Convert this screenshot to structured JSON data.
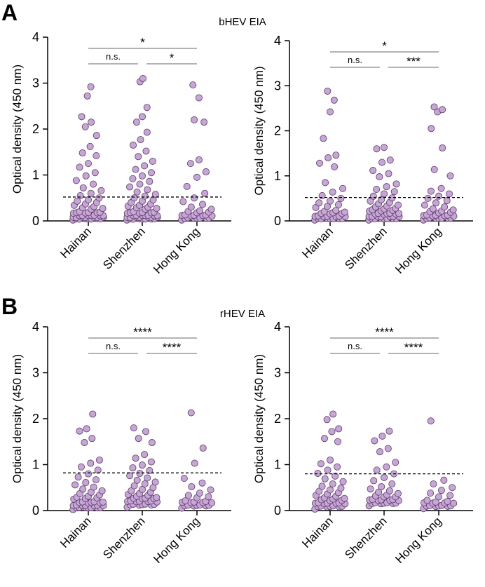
{
  "figure": {
    "panel_a_label": "A",
    "panel_b_label": "B",
    "panel_a_title": "bHEV EIA",
    "panel_b_title": "rHEV EIA",
    "point_color": "#c7a5d6",
    "point_edge_color": "#5a3d66"
  },
  "chart_data": [
    {
      "type": "scatter",
      "id": "a-left",
      "panel": "A",
      "title": "",
      "xlabel": "",
      "ylabel": "Optical density (450 nm)",
      "ylim": [
        0,
        4
      ],
      "yticks": [
        0,
        1,
        2,
        3,
        4
      ],
      "grid": false,
      "categories": [
        "Hainan",
        "Shenzhen",
        "Hong Kong"
      ],
      "cutoff": 0.52,
      "series": [
        {
          "name": "Hainan",
          "values": [
            2.92,
            2.72,
            2.27,
            2.15,
            2.05,
            1.86,
            1.62,
            1.48,
            1.42,
            1.25,
            1.17,
            1.05,
            0.98,
            0.88,
            0.8,
            0.72,
            0.66,
            0.6,
            0.55,
            0.5,
            0.46,
            0.43,
            0.4,
            0.37,
            0.34,
            0.31,
            0.28,
            0.26,
            0.24,
            0.22,
            0.2,
            0.19,
            0.18,
            0.17,
            0.16,
            0.15,
            0.14,
            0.13,
            0.12,
            0.12,
            0.11,
            0.1,
            0.1,
            0.09,
            0.09,
            0.08,
            0.08,
            0.07,
            0.07,
            0.06,
            0.06,
            0.05,
            0.05,
            0.05,
            0.04,
            0.04,
            0.03,
            0.03
          ]
        },
        {
          "name": "Shenzhen",
          "values": [
            3.1,
            3.03,
            2.47,
            2.27,
            2.15,
            1.93,
            1.77,
            1.65,
            1.52,
            1.4,
            1.3,
            1.2,
            1.12,
            1.05,
            0.98,
            0.92,
            0.86,
            0.8,
            0.74,
            0.68,
            0.63,
            0.58,
            0.54,
            0.5,
            0.46,
            0.43,
            0.4,
            0.37,
            0.34,
            0.32,
            0.3,
            0.28,
            0.26,
            0.24,
            0.22,
            0.2,
            0.19,
            0.18,
            0.17,
            0.16,
            0.15,
            0.14,
            0.13,
            0.12,
            0.12,
            0.11,
            0.1,
            0.1,
            0.09,
            0.09,
            0.08,
            0.08,
            0.07,
            0.07,
            0.06,
            0.06,
            0.05,
            0.05,
            0.04,
            0.04,
            0.03,
            0.03,
            0.02
          ]
        },
        {
          "name": "Hong Kong",
          "values": [
            2.96,
            2.68,
            2.2,
            2.15,
            1.33,
            1.25,
            1.07,
            0.95,
            0.75,
            0.6,
            0.5,
            0.42,
            0.36,
            0.3,
            0.26,
            0.22,
            0.2,
            0.18,
            0.16,
            0.15,
            0.14,
            0.13,
            0.12,
            0.11,
            0.1,
            0.09,
            0.08,
            0.08,
            0.07,
            0.06,
            0.05,
            0.05,
            0.04,
            0.03
          ]
        }
      ],
      "comparisons": [
        {
          "from": "Hainan",
          "to": "Shenzhen",
          "label": "n.s.",
          "level": 1
        },
        {
          "from": "Shenzhen",
          "to": "Hong Kong",
          "label": "*",
          "level": 1
        },
        {
          "from": "Hainan",
          "to": "Hong Kong",
          "label": "*",
          "level": 2
        }
      ]
    },
    {
      "type": "scatter",
      "id": "a-right",
      "panel": "A",
      "title": "",
      "xlabel": "",
      "ylabel": "Optical density (450 nm)",
      "ylim": [
        0,
        4
      ],
      "yticks": [
        0,
        1,
        2,
        3,
        4
      ],
      "grid": false,
      "categories": [
        "Hainan",
        "Shenzhen",
        "Hong Kong"
      ],
      "cutoff": 0.52,
      "series": [
        {
          "name": "Hainan",
          "values": [
            2.88,
            2.68,
            2.42,
            1.83,
            1.46,
            1.4,
            1.28,
            1.2,
            0.85,
            0.72,
            0.64,
            0.56,
            0.5,
            0.44,
            0.4,
            0.36,
            0.32,
            0.28,
            0.25,
            0.22,
            0.2,
            0.18,
            0.16,
            0.15,
            0.14,
            0.13,
            0.12,
            0.11,
            0.1,
            0.09,
            0.08,
            0.08,
            0.07,
            0.06,
            0.06,
            0.05,
            0.05,
            0.04,
            0.04,
            0.03
          ]
        },
        {
          "name": "Shenzhen",
          "values": [
            1.63,
            1.6,
            1.35,
            1.3,
            1.12,
            1.05,
            0.98,
            0.82,
            0.76,
            0.7,
            0.65,
            0.6,
            0.55,
            0.51,
            0.47,
            0.44,
            0.41,
            0.38,
            0.35,
            0.33,
            0.31,
            0.29,
            0.27,
            0.25,
            0.23,
            0.21,
            0.2,
            0.19,
            0.18,
            0.17,
            0.16,
            0.15,
            0.14,
            0.13,
            0.12,
            0.11,
            0.1,
            0.1,
            0.09,
            0.08,
            0.08,
            0.07,
            0.06,
            0.06,
            0.05,
            0.05,
            0.04,
            0.04,
            0.03
          ]
        },
        {
          "name": "Hong Kong",
          "values": [
            2.53,
            2.47,
            2.42,
            2.05,
            1.62,
            1.14,
            1.0,
            0.72,
            0.66,
            0.6,
            0.55,
            0.5,
            0.45,
            0.4,
            0.35,
            0.31,
            0.28,
            0.25,
            0.22,
            0.2,
            0.18,
            0.16,
            0.15,
            0.14,
            0.13,
            0.12,
            0.11,
            0.1,
            0.09,
            0.08,
            0.08,
            0.07,
            0.06,
            0.05,
            0.05,
            0.04,
            0.03
          ]
        }
      ],
      "comparisons": [
        {
          "from": "Hainan",
          "to": "Shenzhen",
          "label": "n.s.",
          "level": 1
        },
        {
          "from": "Shenzhen",
          "to": "Hong Kong",
          "label": "***",
          "level": 1
        },
        {
          "from": "Hainan",
          "to": "Hong Kong",
          "label": "*",
          "level": 2
        }
      ]
    },
    {
      "type": "scatter",
      "id": "b-left",
      "panel": "B",
      "title": "",
      "xlabel": "",
      "ylabel": "Optical density (450 nm)",
      "ylim": [
        0,
        4
      ],
      "yticks": [
        0,
        1,
        2,
        3,
        4
      ],
      "grid": false,
      "categories": [
        "Hainan",
        "Shenzhen",
        "Hong Kong"
      ],
      "cutoff": 0.82,
      "series": [
        {
          "name": "Hainan",
          "values": [
            2.1,
            1.78,
            1.73,
            1.57,
            1.48,
            1.1,
            1.03,
            0.95,
            0.88,
            0.8,
            0.73,
            0.67,
            0.61,
            0.56,
            0.51,
            0.47,
            0.43,
            0.4,
            0.37,
            0.34,
            0.31,
            0.29,
            0.27,
            0.25,
            0.23,
            0.21,
            0.2,
            0.19,
            0.18,
            0.17,
            0.16,
            0.15,
            0.14,
            0.13,
            0.12,
            0.11,
            0.1,
            0.1,
            0.09,
            0.08,
            0.08,
            0.07,
            0.06,
            0.06,
            0.05,
            0.05,
            0.04
          ]
        },
        {
          "name": "Shenzhen",
          "values": [
            1.8,
            1.72,
            1.57,
            1.48,
            1.22,
            1.14,
            1.06,
            0.99,
            0.93,
            0.87,
            0.81,
            0.76,
            0.71,
            0.66,
            0.62,
            0.58,
            0.54,
            0.5,
            0.46,
            0.43,
            0.4,
            0.37,
            0.35,
            0.33,
            0.31,
            0.29,
            0.27,
            0.26,
            0.25,
            0.24,
            0.23,
            0.22,
            0.21,
            0.2,
            0.19,
            0.18,
            0.17,
            0.16,
            0.15,
            0.14,
            0.13,
            0.12,
            0.11,
            0.1,
            0.09
          ]
        },
        {
          "name": "Hong Kong",
          "values": [
            2.13,
            1.36,
            1.03,
            0.7,
            0.6,
            0.52,
            0.45,
            0.38,
            0.33,
            0.29,
            0.26,
            0.23,
            0.21,
            0.19,
            0.18,
            0.17,
            0.16,
            0.15,
            0.14,
            0.13,
            0.12,
            0.11,
            0.1,
            0.09,
            0.08,
            0.07
          ]
        }
      ],
      "comparisons": [
        {
          "from": "Hainan",
          "to": "Shenzhen",
          "label": "n.s.",
          "level": 1
        },
        {
          "from": "Shenzhen",
          "to": "Hong Kong",
          "label": "****",
          "level": 1
        },
        {
          "from": "Hainan",
          "to": "Hong Kong",
          "label": "****",
          "level": 2
        }
      ]
    },
    {
      "type": "scatter",
      "id": "b-right",
      "panel": "B",
      "title": "",
      "xlabel": "",
      "ylabel": "Optical density (450 nm)",
      "ylim": [
        0,
        4
      ],
      "yticks": [
        0,
        1,
        2,
        3,
        4
      ],
      "grid": false,
      "categories": [
        "Hainan",
        "Shenzhen",
        "Hong Kong"
      ],
      "cutoff": 0.8,
      "series": [
        {
          "name": "Hainan",
          "values": [
            2.1,
            1.98,
            1.78,
            1.72,
            1.57,
            1.5,
            1.1,
            1.02,
            0.95,
            0.88,
            0.81,
            0.75,
            0.69,
            0.63,
            0.58,
            0.53,
            0.49,
            0.45,
            0.42,
            0.39,
            0.36,
            0.33,
            0.31,
            0.29,
            0.27,
            0.25,
            0.23,
            0.21,
            0.2,
            0.19,
            0.18,
            0.17,
            0.16,
            0.15,
            0.14,
            0.13,
            0.12,
            0.11,
            0.1,
            0.09,
            0.08,
            0.07,
            0.06,
            0.05
          ]
        },
        {
          "name": "Shenzhen",
          "values": [
            1.73,
            1.62,
            1.52,
            1.35,
            1.28,
            1.05,
            0.95,
            0.88,
            0.8,
            0.72,
            0.65,
            0.58,
            0.52,
            0.47,
            0.43,
            0.4,
            0.37,
            0.34,
            0.32,
            0.3,
            0.28,
            0.26,
            0.25,
            0.24,
            0.23,
            0.22,
            0.21,
            0.2,
            0.19,
            0.18,
            0.17,
            0.16,
            0.15,
            0.14,
            0.13,
            0.12
          ]
        },
        {
          "name": "Hong Kong",
          "values": [
            1.95,
            0.66,
            0.58,
            0.5,
            0.44,
            0.38,
            0.33,
            0.28,
            0.24,
            0.21,
            0.19,
            0.17,
            0.16,
            0.15,
            0.14,
            0.13,
            0.12,
            0.11,
            0.1,
            0.09,
            0.08,
            0.07,
            0.06
          ]
        }
      ],
      "comparisons": [
        {
          "from": "Hainan",
          "to": "Shenzhen",
          "label": "n.s.",
          "level": 1
        },
        {
          "from": "Shenzhen",
          "to": "Hong Kong",
          "label": "****",
          "level": 1
        },
        {
          "from": "Hainan",
          "to": "Hong Kong",
          "label": "****",
          "level": 2
        }
      ]
    }
  ]
}
